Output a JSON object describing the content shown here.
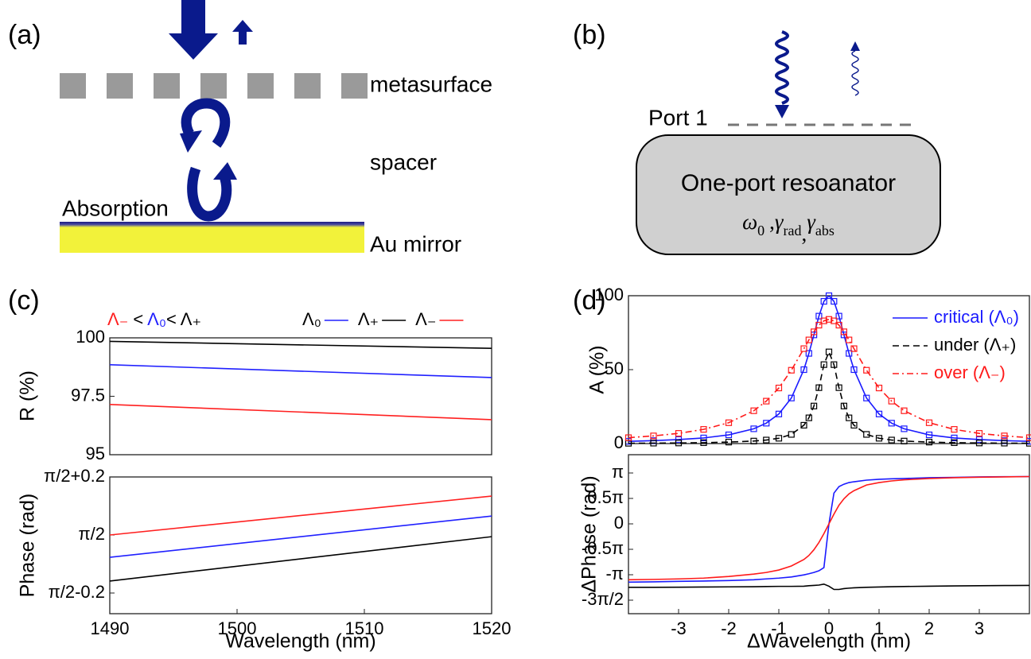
{
  "panel_labels": [
    "(a)",
    "(b)",
    "(c)",
    "(d)"
  ],
  "diagram_a": {
    "layers": [
      "metasurface",
      "spacer",
      "Au mirror"
    ],
    "absorption": "Absorption"
  },
  "diagram_b": {
    "port": "Port 1",
    "resonator": "One-port resoanator",
    "parameters": [
      {
        "symbol": "ω",
        "sub": "0"
      },
      {
        "symbol": "γ",
        "sub": "rad"
      },
      {
        "symbol": "γ",
        "sub": "abs"
      }
    ],
    "separator": ","
  },
  "chart_data": [
    {
      "type": "line",
      "ylabel": "R (%)",
      "annotation": [
        {
          "text": "Λ₋",
          "color": "#ff2020"
        },
        {
          "text": " < ",
          "color": "#000000"
        },
        {
          "text": "Λ₀",
          "color": "#2020ff"
        },
        {
          "text": "< ",
          "color": "#000000"
        },
        {
          "text": "Λ₊",
          "color": "#000000"
        }
      ],
      "x": [
        1490,
        1520
      ],
      "xlim": [
        1490,
        1520
      ],
      "ylim": [
        95,
        100
      ],
      "yticks": [
        95,
        97.5,
        100
      ],
      "legend": "above",
      "series": [
        {
          "name": "Λ₀",
          "color": "#2020ff",
          "values": [
            98.85,
            98.3
          ]
        },
        {
          "name": "Λ₊",
          "color": "#000000",
          "values": [
            99.85,
            99.55
          ]
        },
        {
          "name": "Λ₋",
          "color": "#ff2020",
          "values": [
            97.15,
            96.5
          ]
        }
      ]
    },
    {
      "type": "line",
      "ylabel": "Phase (rad)",
      "xlabel": "Wavelength (nm)",
      "x": [
        1490,
        1520
      ],
      "xlim": [
        1490,
        1520
      ],
      "xticks": [
        1490,
        1500,
        1510,
        1520
      ],
      "ylim": [
        1.2996,
        1.7708
      ],
      "yticks": [
        {
          "value": 1.3708,
          "label": "π/2-0.2"
        },
        {
          "value": 1.5708,
          "label": "π/2"
        },
        {
          "value": 1.7708,
          "label": "π/2+0.2"
        }
      ],
      "series": [
        {
          "color": "#2020ff",
          "values": [
            1.494,
            1.636
          ]
        },
        {
          "color": "#000000",
          "values": [
            1.412,
            1.565
          ]
        },
        {
          "color": "#ff2020",
          "values": [
            1.5708,
            1.705
          ]
        }
      ]
    },
    {
      "type": "line",
      "ylabel": "A (%)",
      "x": [
        -4,
        -3.5,
        -3,
        -2.5,
        -2,
        -1.5,
        -1.25,
        -1,
        -0.75,
        -0.5,
        -0.4,
        -0.3,
        -0.2,
        -0.1,
        0,
        0.1,
        0.2,
        0.3,
        0.4,
        0.5,
        0.75,
        1,
        1.25,
        1.5,
        2,
        2.5,
        3,
        3.5,
        4
      ],
      "xlim": [
        -4,
        4
      ],
      "ylim": [
        0,
        100
      ],
      "yticks": [
        0,
        50,
        100
      ],
      "legend": "upper right",
      "markers": true,
      "series": [
        {
          "name": "critical (Λ₀)",
          "color": "#1a1aff",
          "style": "solid",
          "values": [
            1.5,
            2,
            2.7,
            3.8,
            5.9,
            10,
            13.8,
            20,
            30.8,
            50,
            61,
            73.5,
            86.2,
            96.2,
            100,
            96.2,
            86.2,
            73.5,
            61,
            50,
            30.8,
            20,
            13.8,
            10,
            5.9,
            3.8,
            2.7,
            2,
            1.5
          ]
        },
        {
          "name": "under (Λ₊)",
          "color": "#000000",
          "style": "dashed",
          "values": [
            0.2,
            0.3,
            0.4,
            0.6,
            1,
            1.7,
            2.4,
            3.6,
            6.2,
            12.4,
            17.4,
            25.4,
            37.8,
            53.4,
            62,
            53.4,
            37.8,
            25.4,
            17.4,
            12.4,
            6.2,
            3.6,
            2.4,
            1.7,
            1,
            0.6,
            0.4,
            0.3,
            0.2
          ]
        },
        {
          "name": "over (Λ₋)",
          "color": "#ff1a1a",
          "style": "dash-dot",
          "values": [
            4,
            5.2,
            6.9,
            9.6,
            14.1,
            22.2,
            28.7,
            37.6,
            49.6,
            64.2,
            70.1,
            75.6,
            80.1,
            83,
            84,
            83,
            80.1,
            75.6,
            70.1,
            64.2,
            49.6,
            37.6,
            28.7,
            22.2,
            14.1,
            9.6,
            6.9,
            5.2,
            4
          ]
        }
      ]
    },
    {
      "type": "line",
      "ylabel": "ΔPhase (rad)",
      "xlabel": "ΔWavelength (nm)",
      "x": [
        -4,
        -3.5,
        -3,
        -2.5,
        -2,
        -1.5,
        -1.25,
        -1,
        -0.75,
        -0.5,
        -0.4,
        -0.3,
        -0.2,
        -0.1,
        0,
        0.1,
        0.2,
        0.3,
        0.4,
        0.5,
        0.75,
        1,
        1.25,
        1.5,
        2,
        2.5,
        3,
        3.5,
        4
      ],
      "xlim": [
        -4,
        4
      ],
      "xticks": [
        -3,
        -2,
        -1,
        0,
        1,
        2,
        3
      ],
      "ylim": [
        -5.547,
        4.27
      ],
      "yticks": [
        {
          "value": -4.7124,
          "label": "-3π/2"
        },
        {
          "value": -3.1416,
          "label": "-π"
        },
        {
          "value": -1.5708,
          "label": "-0.5π"
        },
        0,
        {
          "value": 1.5708,
          "label": "0.5π"
        },
        {
          "value": 3.1416,
          "label": "π"
        }
      ],
      "series": [
        {
          "color": "#1a1aff",
          "values": [
            -3.6,
            -3.58,
            -3.55,
            -3.53,
            -3.5,
            -3.45,
            -3.4,
            -3.35,
            -3.28,
            -3.15,
            -3.08,
            -3.0,
            -2.9,
            -2.7,
            0,
            1.9,
            2.3,
            2.45,
            2.55,
            2.6,
            2.7,
            2.75,
            2.78,
            2.8,
            2.85,
            2.87,
            2.9,
            2.91,
            2.92
          ]
        },
        {
          "color": "#000000",
          "values": [
            -3.92,
            -3.92,
            -3.91,
            -3.9,
            -3.89,
            -3.88,
            -3.87,
            -3.86,
            -3.86,
            -3.85,
            -3.82,
            -3.8,
            -3.78,
            -3.72,
            -3.85,
            -4.05,
            -4.05,
            -4.0,
            -3.97,
            -3.95,
            -3.92,
            -3.9,
            -3.88,
            -3.87,
            -3.85,
            -3.83,
            -3.82,
            -3.81,
            -3.8
          ]
        },
        {
          "color": "#ff1a1a",
          "values": [
            -3.45,
            -3.43,
            -3.4,
            -3.35,
            -3.25,
            -3.1,
            -3.0,
            -2.85,
            -2.6,
            -2.2,
            -1.95,
            -1.6,
            -1.15,
            -0.6,
            0,
            0.6,
            1.15,
            1.55,
            1.85,
            2.05,
            2.4,
            2.55,
            2.65,
            2.72,
            2.8,
            2.85,
            2.88,
            2.9,
            2.92
          ]
        }
      ]
    }
  ]
}
